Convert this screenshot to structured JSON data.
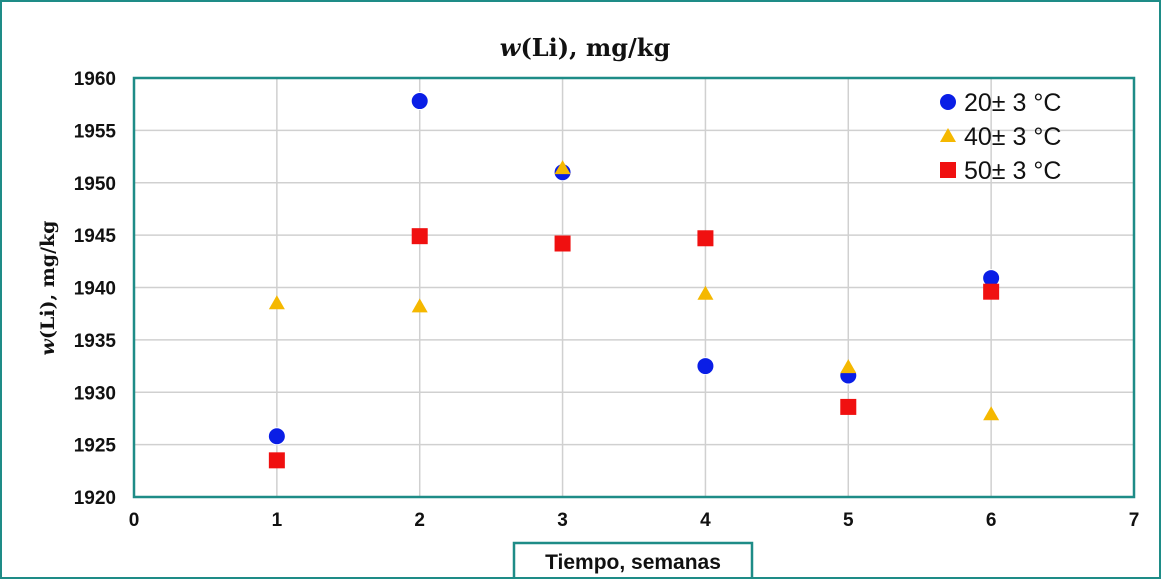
{
  "chart_data": {
    "type": "scatter",
    "title_italic": "w",
    "title_rest": "(Li), mg/kg",
    "ylabel_italic": "w",
    "ylabel_rest": "(Li), mg/kg",
    "xlabel": "Tiempo, semanas",
    "xlim": [
      0,
      7
    ],
    "ylim": [
      1920,
      1960
    ],
    "x_ticks": [
      0,
      1,
      2,
      3,
      4,
      5,
      6,
      7
    ],
    "y_ticks": [
      1920,
      1925,
      1930,
      1935,
      1940,
      1945,
      1950,
      1955,
      1960
    ],
    "grid": true,
    "legend_position": "top-right",
    "series": [
      {
        "name": "20± 3 °C",
        "marker": "circle",
        "color": "#0a1ee6",
        "x": [
          1,
          2,
          3,
          4,
          5,
          6
        ],
        "y": [
          1925.8,
          1957.8,
          1951.0,
          1932.5,
          1931.6,
          1940.9
        ]
      },
      {
        "name": "40± 3 °C",
        "marker": "triangle",
        "color": "#f5b800",
        "x": [
          1,
          2,
          3,
          4,
          5,
          6
        ],
        "y": [
          1938.5,
          1938.2,
          1951.4,
          1939.4,
          1932.4,
          1927.9
        ]
      },
      {
        "name": "50± 3 °C",
        "marker": "square",
        "color": "#f01010",
        "x": [
          1,
          2,
          3,
          4,
          5,
          6
        ],
        "y": [
          1923.5,
          1944.9,
          1944.2,
          1944.7,
          1928.6,
          1939.6
        ]
      }
    ]
  },
  "colors": {
    "plot_border": "#1e8c87",
    "grid": "#d0d0d0"
  }
}
